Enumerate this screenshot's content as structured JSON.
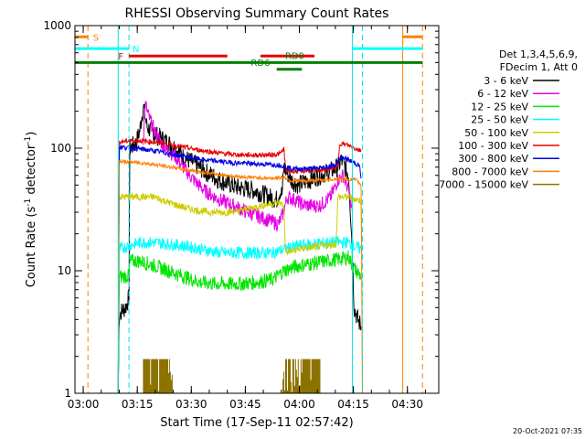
{
  "chart_data": {
    "type": "line",
    "title": "RHESSI Observing Summary Count Rates",
    "xlabel": "Start Time (17-Sep-11 02:57:42)",
    "ylabel_main": "Count Rate (s",
    "ylabel_sup1": "-1",
    "ylabel_mid": " detector",
    "ylabel_sup2": "-1",
    "ylabel_end": ")",
    "x_unit": "minutes since 02:57:42",
    "xlim": [
      0,
      101
    ],
    "ylim": [
      1,
      1000
    ],
    "y_scale": "log",
    "x_ticks": [
      {
        "label": "03:00",
        "value": 2.3
      },
      {
        "label": "03:15",
        "value": 17.3
      },
      {
        "label": "03:30",
        "value": 32.3
      },
      {
        "label": "03:45",
        "value": 47.3
      },
      {
        "label": "04:00",
        "value": 62.3
      },
      {
        "label": "04:15",
        "value": 77.3
      },
      {
        "label": "04:30",
        "value": 92.3
      }
    ],
    "y_ticks": [
      {
        "label": "1",
        "value": 1
      },
      {
        "label": "10",
        "value": 10
      },
      {
        "label": "100",
        "value": 100
      },
      {
        "label": "1000",
        "value": 1000
      }
    ],
    "legend": {
      "position": "right",
      "header": [
        "Det 1,3,4,5,6,9,",
        "FDecim 1, Att 0"
      ],
      "entries": [
        {
          "label": "3 - 6 keV",
          "color": "#000000"
        },
        {
          "label": "6 - 12 keV",
          "color": "#e600e6"
        },
        {
          "label": "12 - 25 keV",
          "color": "#00e600"
        },
        {
          "label": "25 - 50 keV",
          "color": "#00ffff"
        },
        {
          "label": "50 - 100 keV",
          "color": "#cccc00"
        },
        {
          "label": "100 - 300 keV",
          "color": "#e60000"
        },
        {
          "label": "300 - 800 keV",
          "color": "#0000e6"
        },
        {
          "label": "800 - 7000 keV",
          "color": "#ff8000"
        },
        {
          "label": "7000 - 15000 keV",
          "color": "#8c7300"
        }
      ]
    },
    "series": [
      {
        "name": "3 - 6 keV",
        "color": "#000000",
        "noise": 0.08,
        "points": [
          [
            12.0,
            1
          ],
          [
            12.3,
            4.5
          ],
          [
            14.0,
            5
          ],
          [
            15.0,
            6
          ],
          [
            15.2,
            100
          ],
          [
            17.0,
            110
          ],
          [
            18.0,
            140
          ],
          [
            19.0,
            220
          ],
          [
            20.0,
            150
          ],
          [
            22.0,
            130
          ],
          [
            25.0,
            115
          ],
          [
            28.0,
            100
          ],
          [
            30.0,
            85
          ],
          [
            33.0,
            75
          ],
          [
            36.0,
            65
          ],
          [
            40.0,
            55
          ],
          [
            45.0,
            48
          ],
          [
            50.0,
            45
          ],
          [
            54.0,
            40
          ],
          [
            56.0,
            38
          ],
          [
            57.0,
            45
          ],
          [
            57.5,
            42
          ],
          [
            58.0,
            70
          ],
          [
            60.0,
            55
          ],
          [
            62.0,
            50
          ],
          [
            65.0,
            55
          ],
          [
            68.0,
            60
          ],
          [
            71.0,
            65
          ],
          [
            73.0,
            70
          ],
          [
            74.0,
            80
          ],
          [
            76.0,
            60
          ],
          [
            77.0,
            15
          ],
          [
            77.5,
            5
          ],
          [
            78.5,
            4
          ],
          [
            79.5,
            3.5
          ]
        ]
      },
      {
        "name": "6 - 12 keV",
        "color": "#e600e6",
        "noise": 0.06,
        "points": [
          [
            19.0,
            120
          ],
          [
            19.5,
            230
          ],
          [
            20.5,
            180
          ],
          [
            22.0,
            140
          ],
          [
            24.0,
            110
          ],
          [
            26.0,
            95
          ],
          [
            28.0,
            85
          ],
          [
            30.0,
            70
          ],
          [
            33.0,
            55
          ],
          [
            36.0,
            45
          ],
          [
            40.0,
            38
          ],
          [
            44.0,
            34
          ],
          [
            48.0,
            30
          ],
          [
            52.0,
            27
          ],
          [
            55.0,
            25
          ],
          [
            56.5,
            24
          ],
          [
            57.5,
            28
          ],
          [
            59.0,
            40
          ],
          [
            61.0,
            38
          ],
          [
            63.0,
            35
          ],
          [
            65.0,
            34
          ],
          [
            68.0,
            34
          ],
          [
            71.0,
            40
          ],
          [
            73.0,
            55
          ],
          [
            74.5,
            60
          ],
          [
            76.0,
            45
          ],
          [
            77.0,
            30
          ]
        ]
      },
      {
        "name": "12 - 25 keV",
        "color": "#00e600",
        "noise": 0.06,
        "points": [
          [
            12.0,
            1
          ],
          [
            12.3,
            9
          ],
          [
            15.0,
            9
          ],
          [
            15.3,
            12
          ],
          [
            18.0,
            12
          ],
          [
            22.0,
            11
          ],
          [
            26.0,
            10
          ],
          [
            30.0,
            9
          ],
          [
            35.0,
            8
          ],
          [
            40.0,
            7.8
          ],
          [
            45.0,
            7.8
          ],
          [
            50.0,
            8
          ],
          [
            55.0,
            8.5
          ],
          [
            58.0,
            10
          ],
          [
            62.0,
            11
          ],
          [
            66.0,
            11.5
          ],
          [
            70.0,
            12
          ],
          [
            74.0,
            12.5
          ],
          [
            76.0,
            13
          ],
          [
            77.0,
            11
          ],
          [
            78.0,
            10
          ],
          [
            79.5,
            9
          ]
        ]
      },
      {
        "name": "25 - 50 keV",
        "color": "#00ffff",
        "noise": 0.05,
        "points": [
          [
            12.0,
            1
          ],
          [
            12.3,
            15
          ],
          [
            15.0,
            16
          ],
          [
            18.0,
            17
          ],
          [
            22.0,
            17
          ],
          [
            26.0,
            16.5
          ],
          [
            30.0,
            16
          ],
          [
            35.0,
            15
          ],
          [
            40.0,
            14
          ],
          [
            45.0,
            14
          ],
          [
            50.0,
            14
          ],
          [
            55.0,
            14
          ],
          [
            58.0,
            15
          ],
          [
            62.0,
            16
          ],
          [
            66.0,
            16.5
          ],
          [
            70.0,
            17
          ],
          [
            74.0,
            17
          ],
          [
            76.0,
            17
          ],
          [
            77.0,
            16
          ],
          [
            79.5,
            15
          ]
        ]
      },
      {
        "name": "50 - 100 keV",
        "color": "#cccc00",
        "noise": 0.03,
        "points": [
          [
            12.0,
            1
          ],
          [
            12.3,
            40
          ],
          [
            15.0,
            40
          ],
          [
            18.0,
            40
          ],
          [
            22.0,
            40
          ],
          [
            26.0,
            36
          ],
          [
            30.0,
            33
          ],
          [
            34.0,
            31
          ],
          [
            38.0,
            30
          ],
          [
            42.0,
            30
          ],
          [
            46.0,
            31
          ],
          [
            50.0,
            33
          ],
          [
            54.0,
            35
          ],
          [
            57.0,
            36
          ],
          [
            58.0,
            33
          ],
          [
            58.5,
            14
          ],
          [
            62.0,
            15
          ],
          [
            66.0,
            15.5
          ],
          [
            70.0,
            16
          ],
          [
            72.5,
            16.5
          ],
          [
            73.0,
            40
          ],
          [
            76.0,
            40
          ],
          [
            79.5,
            37
          ],
          [
            79.8,
            1
          ]
        ]
      },
      {
        "name": "100 - 300 keV",
        "color": "#e60000",
        "noise": 0.02,
        "points": [
          [
            12.0,
            1
          ],
          [
            12.3,
            112
          ],
          [
            15.0,
            115
          ],
          [
            18.0,
            115
          ],
          [
            22.0,
            112
          ],
          [
            26.0,
            108
          ],
          [
            30.0,
            102
          ],
          [
            34.0,
            97
          ],
          [
            38.0,
            93
          ],
          [
            42.0,
            90
          ],
          [
            46.0,
            88
          ],
          [
            50.0,
            88
          ],
          [
            54.0,
            88
          ],
          [
            57.0,
            90
          ],
          [
            58.0,
            100
          ],
          [
            58.5,
            65
          ],
          [
            62.0,
            65
          ],
          [
            66.0,
            66
          ],
          [
            70.0,
            67
          ],
          [
            73.0,
            70
          ],
          [
            73.5,
            110
          ],
          [
            76.0,
            105
          ],
          [
            79.5,
            95
          ]
        ]
      },
      {
        "name": "300 - 800 keV",
        "color": "#0000e6",
        "noise": 0.02,
        "points": [
          [
            12.0,
            1
          ],
          [
            12.3,
            102
          ],
          [
            16.0,
            100
          ],
          [
            20.0,
            97
          ],
          [
            24.0,
            93
          ],
          [
            28.0,
            88
          ],
          [
            32.0,
            84
          ],
          [
            36.0,
            80
          ],
          [
            40.0,
            78
          ],
          [
            44.0,
            76
          ],
          [
            48.0,
            75
          ],
          [
            52.0,
            74
          ],
          [
            56.0,
            73
          ],
          [
            58.0,
            72
          ],
          [
            60.0,
            68
          ],
          [
            64.0,
            68
          ],
          [
            68.0,
            69
          ],
          [
            72.0,
            72
          ],
          [
            74.0,
            85
          ],
          [
            76.0,
            80
          ],
          [
            79.0,
            72
          ],
          [
            79.5,
            55
          ]
        ]
      },
      {
        "name": "800 - 7000 keV",
        "color": "#ff8000",
        "noise": 0.015,
        "points": [
          [
            12.0,
            1
          ],
          [
            12.3,
            78
          ],
          [
            16.0,
            77
          ],
          [
            20.0,
            75
          ],
          [
            24.0,
            72
          ],
          [
            28.0,
            69
          ],
          [
            32.0,
            66
          ],
          [
            36.0,
            63
          ],
          [
            40.0,
            61
          ],
          [
            44.0,
            59
          ],
          [
            48.0,
            58
          ],
          [
            52.0,
            57
          ],
          [
            56.0,
            57
          ],
          [
            58.0,
            58
          ],
          [
            60.0,
            54
          ],
          [
            64.0,
            54
          ],
          [
            68.0,
            55
          ],
          [
            72.0,
            56
          ],
          [
            75.0,
            56
          ],
          [
            78.0,
            55
          ],
          [
            79.5,
            50
          ],
          [
            79.8,
            1
          ]
        ]
      }
    ],
    "spike_series": {
      "name": "7000 - 15000 keV",
      "color": "#8c7300",
      "top": 1.9,
      "ranges": [
        [
          19.0,
          27.0
        ],
        [
          57.5,
          68.0
        ]
      ]
    },
    "cyan_vlines": [
      {
        "x": 12.0,
        "style": "solid"
      },
      {
        "x": 15.0,
        "style": "dashed"
      },
      {
        "x": 77.0,
        "style": "solid"
      },
      {
        "x": 79.8,
        "style": "dashed"
      }
    ],
    "orange_vlines": [
      {
        "x": 3.6,
        "style": "dashed"
      },
      {
        "x": 91.0,
        "style": "solid"
      },
      {
        "x": 96.5,
        "style": "dashed"
      }
    ],
    "flag_bars": [
      {
        "label": "S",
        "color": "#ff8000",
        "y": 810,
        "segments": [
          [
            0,
            3.6
          ],
          [
            91.0,
            96.5
          ]
        ],
        "label_x": 5.0,
        "label_side": "right"
      },
      {
        "label": "N",
        "color": "#00ffff",
        "y": 650,
        "segments": [
          [
            0,
            15.0
          ],
          [
            77.0,
            96.5
          ]
        ],
        "label_x": 16.0,
        "label_side": "right"
      },
      {
        "label": "F",
        "color": "#e60000",
        "y": 565,
        "segments": [
          [
            15.0,
            42.3
          ],
          [
            51.5,
            66.5
          ]
        ],
        "label_x": 13.5,
        "label_side": "left"
      },
      {
        "label": "RD0",
        "color": "#008000",
        "y": 500,
        "segments": [
          [
            0,
            96.5
          ]
        ],
        "label_x": 61.0,
        "label_side": "center"
      },
      {
        "label": "RD6",
        "color": "#008000",
        "y": 440,
        "segments": [
          [
            56.0,
            63.0
          ]
        ],
        "label_x": 51.5,
        "label_side": "center"
      }
    ],
    "timestamp": "20-Oct-2021 07:35"
  }
}
